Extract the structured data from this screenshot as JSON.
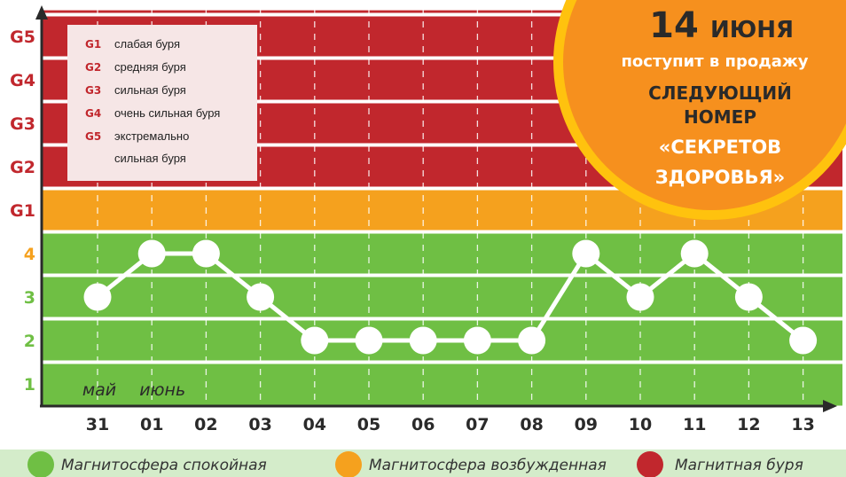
{
  "chart_data": {
    "type": "line",
    "categories": [
      "31",
      "01",
      "02",
      "03",
      "04",
      "05",
      "06",
      "07",
      "08",
      "09",
      "10",
      "11",
      "12",
      "13"
    ],
    "values": [
      3,
      4,
      4,
      3,
      2,
      2,
      2,
      2,
      2,
      4,
      3,
      4,
      3,
      2
    ],
    "month_labels": [
      {
        "label": "май",
        "category": "31"
      },
      {
        "label": "июнь",
        "category": "01"
      }
    ],
    "y_ticks": [
      "1",
      "2",
      "3",
      "4",
      "G1",
      "G2",
      "G3",
      "G4",
      "G5"
    ],
    "ylim": [
      1,
      9
    ],
    "bands": [
      {
        "from": 0.5,
        "to": 4.5,
        "color": "#6fbf44",
        "state": "calm"
      },
      {
        "from": 4.5,
        "to": 5.5,
        "color": "#f5a11e",
        "state": "excited"
      },
      {
        "from": 5.5,
        "to": 10.5,
        "color": "#c1272d",
        "state": "storm"
      }
    ],
    "storm_scale": [
      {
        "code": "G1",
        "desc": "слабая буря"
      },
      {
        "code": "G2",
        "desc": "средняя буря"
      },
      {
        "code": "G3",
        "desc": "сильная буря"
      },
      {
        "code": "G4",
        "desc": "очень сильная буря"
      },
      {
        "code": "G5",
        "desc": "экстремально",
        "desc2": "сильная буря"
      }
    ],
    "legend": [
      {
        "label": "Магнитосфера спокойная",
        "color": "#6fbf44"
      },
      {
        "label": "Магнитосфера возбужденная",
        "color": "#f5a11e"
      },
      {
        "label": "Магнитная буря",
        "color": "#c1272d"
      }
    ],
    "grid": true,
    "colors": {
      "tick_low": "#6fbf44",
      "tick_mid": "#f5a11e",
      "tick_storm": "#c1272d",
      "line": "#ffffff",
      "axis": "#2a2a2a"
    }
  },
  "promo": {
    "date_number": "14",
    "date_month": "ИЮНЯ",
    "line1": "поступит в продажу",
    "line2": "СЛЕДУЮЩИЙ",
    "line3": "НОМЕР",
    "line4": "«СЕКРЕТОВ",
    "line5": "ЗДОРОВЬЯ»",
    "circle_color": "#f6901e",
    "ring_color": "#ffc20e"
  }
}
